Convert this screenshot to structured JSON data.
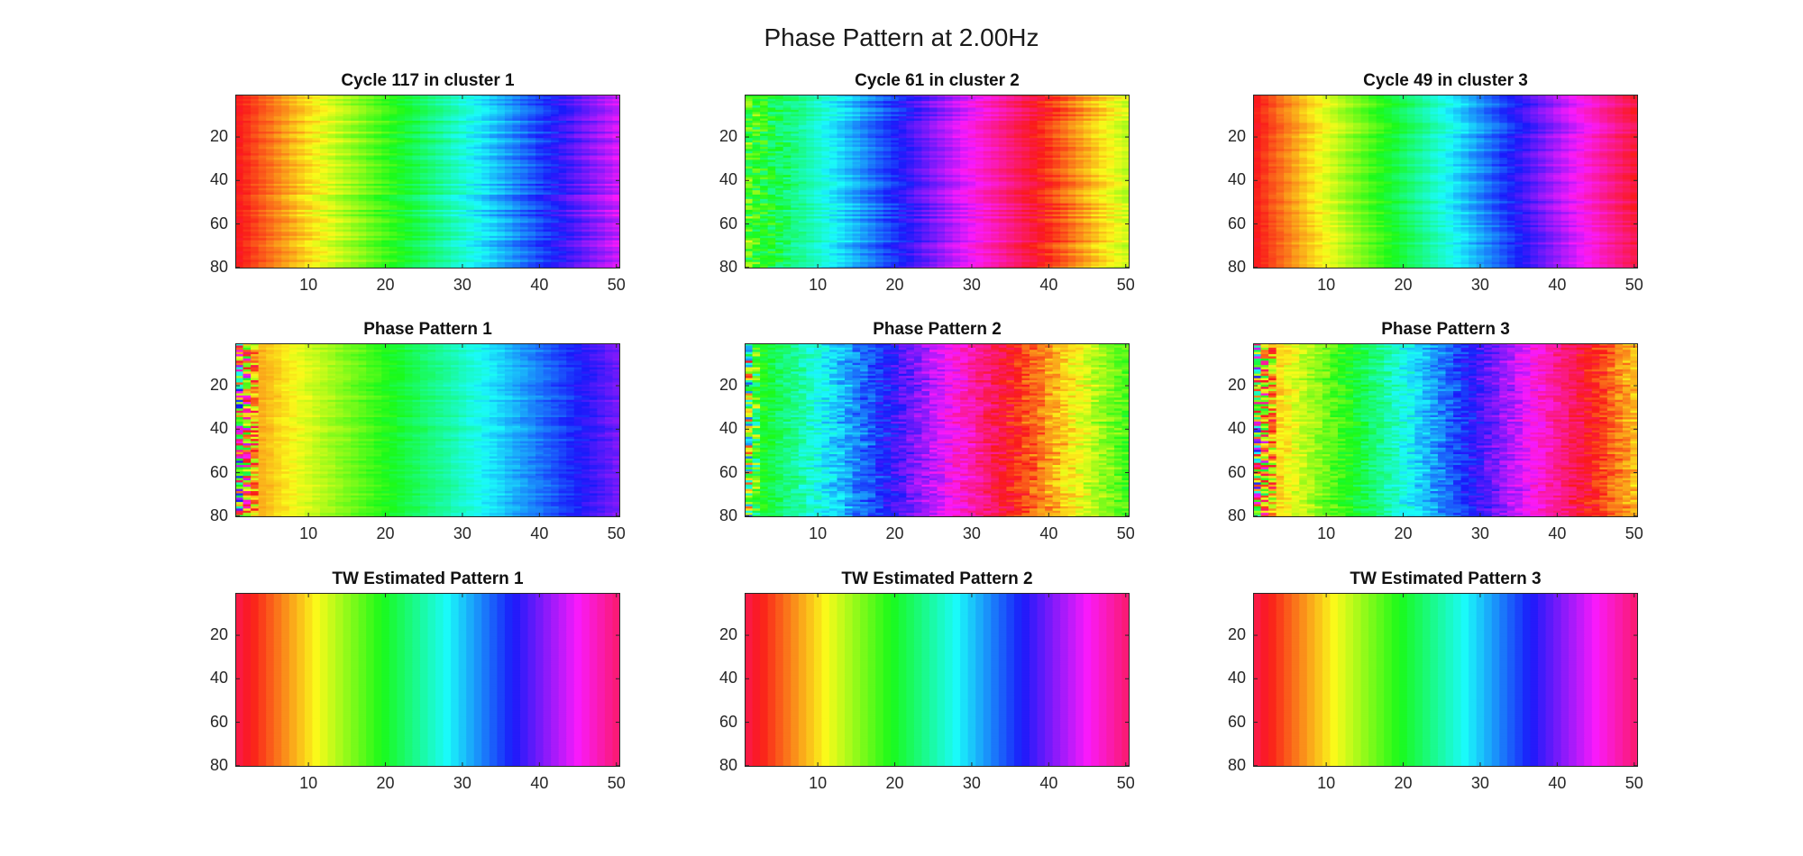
{
  "figure_title": "Phase Pattern at 2.00Hz",
  "colormap": "hsv",
  "chart_data": [
    {
      "type": "heatmap",
      "title": "Cycle 117 in cluster 1",
      "xlim": [
        0.5,
        50.5
      ],
      "ylim": [
        0.5,
        80.5
      ],
      "y_reversed": true,
      "xticks": [
        10,
        20,
        30,
        40,
        50
      ],
      "yticks": [
        20,
        40,
        60,
        80
      ],
      "n_cols": 50,
      "n_rows": 80,
      "phase_profile": {
        "start": 0.0,
        "end": 0.8,
        "row_jitter": 0.035,
        "noise": 0.006,
        "edge_cols": 0,
        "edge_noise": 0.0
      }
    },
    {
      "type": "heatmap",
      "title": "Cycle 61 in cluster 2",
      "xlim": [
        0.5,
        50.5
      ],
      "ylim": [
        0.5,
        80.5
      ],
      "y_reversed": true,
      "xticks": [
        10,
        20,
        30,
        40,
        50
      ],
      "yticks": [
        20,
        40,
        60,
        80
      ],
      "n_cols": 50,
      "n_rows": 80,
      "phase_profile": {
        "start": 0.3,
        "end": 1.2,
        "row_jitter": 0.035,
        "noise": 0.006,
        "edge_cols": 8,
        "edge_noise": 0.11
      }
    },
    {
      "type": "heatmap",
      "title": "Cycle 49 in cluster 3",
      "xlim": [
        0.5,
        50.5
      ],
      "ylim": [
        0.5,
        80.5
      ],
      "y_reversed": true,
      "xticks": [
        10,
        20,
        30,
        40,
        50
      ],
      "yticks": [
        20,
        40,
        60,
        80
      ],
      "n_cols": 50,
      "n_rows": 80,
      "phase_profile": {
        "start": 0.0,
        "end": 0.97,
        "row_jitter": 0.03,
        "noise": 0.006,
        "edge_cols": 0,
        "edge_noise": 0.0
      }
    },
    {
      "type": "heatmap",
      "title": "Phase Pattern 1",
      "xlim": [
        0.5,
        50.5
      ],
      "ylim": [
        0.5,
        80.5
      ],
      "y_reversed": true,
      "xticks": [
        10,
        20,
        30,
        40,
        50
      ],
      "yticks": [
        20,
        40,
        60,
        80
      ],
      "n_cols": 50,
      "n_rows": 80,
      "phase_profile": {
        "start": 0.07,
        "end": 0.73,
        "row_jitter": 0.02,
        "noise": 0.01,
        "edge_cols": 3,
        "edge_noise": 0.45
      }
    },
    {
      "type": "heatmap",
      "title": "Phase Pattern 2",
      "xlim": [
        0.5,
        50.5
      ],
      "ylim": [
        0.5,
        80.5
      ],
      "y_reversed": true,
      "xticks": [
        10,
        20,
        30,
        40,
        50
      ],
      "yticks": [
        20,
        40,
        60,
        80
      ],
      "n_cols": 50,
      "n_rows": 80,
      "phase_profile": {
        "start": 0.3,
        "end": 1.3,
        "row_jitter": 0.02,
        "noise": 0.04,
        "edge_cols": 2,
        "edge_noise": 0.3
      }
    },
    {
      "type": "heatmap",
      "title": "Phase Pattern 3",
      "xlim": [
        0.5,
        50.5
      ],
      "ylim": [
        0.5,
        80.5
      ],
      "y_reversed": true,
      "xticks": [
        10,
        20,
        30,
        40,
        50
      ],
      "yticks": [
        20,
        40,
        60,
        80
      ],
      "n_cols": 50,
      "n_rows": 80,
      "phase_profile": {
        "start": 0.08,
        "end": 1.12,
        "row_jitter": 0.02,
        "noise": 0.035,
        "edge_cols": 3,
        "edge_noise": 0.45
      }
    },
    {
      "type": "heatmap",
      "title": "TW Estimated Pattern 1",
      "xlim": [
        0.5,
        50.5
      ],
      "ylim": [
        0.5,
        80.5
      ],
      "y_reversed": true,
      "xticks": [
        10,
        20,
        30,
        40,
        50
      ],
      "yticks": [
        20,
        40,
        60,
        80
      ],
      "n_cols": 50,
      "n_rows": 80,
      "phase_profile": {
        "start": 0.97,
        "end": 1.93,
        "row_jitter": 0.0,
        "noise": 0.0,
        "edge_cols": 0,
        "edge_noise": 0.0
      }
    },
    {
      "type": "heatmap",
      "title": "TW Estimated Pattern 2",
      "xlim": [
        0.5,
        50.5
      ],
      "ylim": [
        0.5,
        80.5
      ],
      "y_reversed": true,
      "xticks": [
        10,
        20,
        30,
        40,
        50
      ],
      "yticks": [
        20,
        40,
        60,
        80
      ],
      "n_cols": 50,
      "n_rows": 80,
      "phase_profile": {
        "start": 0.97,
        "end": 1.93,
        "row_jitter": 0.0,
        "noise": 0.0,
        "edge_cols": 0,
        "edge_noise": 0.0
      }
    },
    {
      "type": "heatmap",
      "title": "TW Estimated Pattern 3",
      "xlim": [
        0.5,
        50.5
      ],
      "ylim": [
        0.5,
        80.5
      ],
      "y_reversed": true,
      "xticks": [
        10,
        20,
        30,
        40,
        50
      ],
      "yticks": [
        20,
        40,
        60,
        80
      ],
      "n_cols": 50,
      "n_rows": 80,
      "phase_profile": {
        "start": 0.97,
        "end": 1.93,
        "row_jitter": 0.0,
        "noise": 0.0,
        "edge_cols": 0,
        "edge_noise": 0.0
      }
    }
  ]
}
